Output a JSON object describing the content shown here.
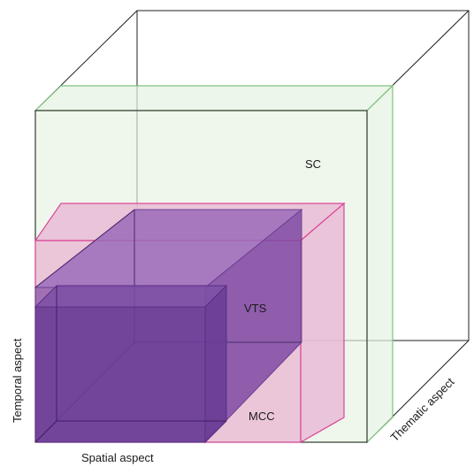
{
  "labels": {
    "sc": "SC",
    "vts": "VTS",
    "mcc": "MCC",
    "x_axis": "Spatial aspect",
    "y_axis": "Temporal aspect",
    "z_axis": "Thematic aspect"
  },
  "colors": {
    "outline": "#222222",
    "sc_fill": "#e6f2e2",
    "sc_stroke": "#7cc47c",
    "mcc_fill": "#e9b6d3",
    "mcc_stroke": "#d9479a",
    "vts_fill": "#8d5aa9",
    "vts_stroke": "#7a4a9a",
    "small_fill": "#6a3d96",
    "small_stroke": "#5a2f86"
  },
  "boxes": [
    {
      "id": "outer-cube",
      "label": "",
      "x_range": [
        0,
        1
      ],
      "y_range": [
        0,
        1
      ],
      "z_range": [
        0,
        1
      ]
    },
    {
      "id": "sc-box",
      "label": "SC",
      "x_range": [
        0,
        1
      ],
      "y_range": [
        0,
        0.8
      ],
      "z_range": [
        0,
        0.18
      ]
    },
    {
      "id": "mcc-box",
      "label": "MCC",
      "x_range": [
        0,
        0.8
      ],
      "y_range": [
        0,
        0.5
      ],
      "z_range": [
        0,
        0.18
      ]
    },
    {
      "id": "vts-box",
      "label": "VTS",
      "x_range": [
        0,
        0.5
      ],
      "y_range": [
        0,
        0.5
      ],
      "z_range": [
        0,
        1
      ]
    },
    {
      "id": "inner-box",
      "label": "",
      "x_range": [
        0,
        0.5
      ],
      "y_range": [
        0,
        0.3
      ],
      "z_range": [
        0,
        0.66
      ]
    }
  ]
}
